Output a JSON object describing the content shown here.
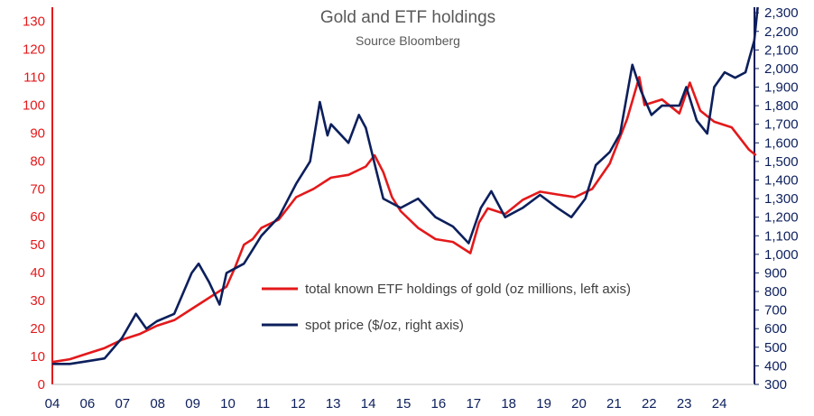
{
  "chart_data": {
    "type": "line",
    "title": "Gold and ETF holdings",
    "subtitle": "Source Bloomberg",
    "x_ticks": [
      "04",
      "06",
      "07",
      "08",
      "09",
      "10",
      "11",
      "12",
      "13",
      "14",
      "15",
      "16",
      "17",
      "18",
      "19",
      "20",
      "21",
      "22",
      "23",
      "24"
    ],
    "y_left_ticks": [
      "0",
      "10",
      "20",
      "30",
      "40",
      "50",
      "60",
      "70",
      "80",
      "90",
      "100",
      "110",
      "120",
      "130"
    ],
    "y_right_ticks": [
      "300",
      "400",
      "500",
      "600",
      "700",
      "800",
      "900",
      "1,000",
      "1,100",
      "1,200",
      "1,300",
      "1,400",
      "1,500",
      "1,600",
      "1,700",
      "1,800",
      "1,900",
      "2,000",
      "2,100",
      "2,200",
      "2,300"
    ],
    "ylim_left": [
      0,
      135
    ],
    "ylim_right": [
      300,
      2330
    ],
    "grid": false,
    "legend_position": "center",
    "colors": {
      "etf": "#e3191b",
      "spot": "#0c1f5c"
    },
    "series": [
      {
        "name": "total known ETF holdings of gold (oz millions, left axis)",
        "axis": "left",
        "x": [
          2004.0,
          2004.5,
          2005.0,
          2005.5,
          2006.0,
          2006.5,
          2007.0,
          2007.5,
          2008.0,
          2008.5,
          2009.0,
          2009.25,
          2009.5,
          2009.75,
          2010.0,
          2010.5,
          2011.0,
          2011.5,
          2012.0,
          2012.5,
          2013.0,
          2013.25,
          2013.5,
          2013.75,
          2014.0,
          2014.5,
          2015.0,
          2015.5,
          2016.0,
          2016.25,
          2016.5,
          2017.0,
          2017.5,
          2018.0,
          2018.5,
          2019.0,
          2019.5,
          2020.0,
          2020.5,
          2020.85,
          2021.0,
          2021.5,
          2022.0,
          2022.3,
          2022.6,
          2023.0,
          2023.5,
          2024.0,
          2024.2
        ],
        "values": [
          8,
          9,
          11,
          13,
          16,
          18,
          21,
          23,
          27,
          31,
          35,
          42,
          50,
          52,
          56,
          59,
          67,
          70,
          74,
          75,
          78,
          82,
          76,
          67,
          62,
          56,
          52,
          51,
          47,
          58,
          63,
          61,
          66,
          69,
          68,
          67,
          70,
          79,
          95,
          110,
          100,
          102,
          97,
          108,
          98,
          94,
          92,
          84,
          82
        ]
      },
      {
        "name": "spot price ($/oz, right axis)",
        "axis": "right",
        "x": [
          2004.0,
          2004.5,
          2005.0,
          2005.5,
          2006.0,
          2006.4,
          2006.7,
          2007.0,
          2007.5,
          2008.0,
          2008.2,
          2008.5,
          2008.8,
          2009.0,
          2009.5,
          2010.0,
          2010.5,
          2011.0,
          2011.4,
          2011.68,
          2011.9,
          2012.0,
          2012.5,
          2012.8,
          2013.0,
          2013.3,
          2013.5,
          2014.0,
          2014.5,
          2015.0,
          2015.5,
          2015.95,
          2016.3,
          2016.6,
          2017.0,
          2017.5,
          2018.0,
          2018.5,
          2018.9,
          2019.3,
          2019.6,
          2020.0,
          2020.3,
          2020.65,
          2020.9,
          2021.2,
          2021.5,
          2022.0,
          2022.2,
          2022.5,
          2022.8,
          2023.0,
          2023.3,
          2023.6,
          2023.9,
          2024.0,
          2024.15,
          2024.25
        ],
        "values": [
          410,
          410,
          425,
          440,
          550,
          680,
          600,
          640,
          680,
          900,
          950,
          850,
          730,
          900,
          950,
          1100,
          1200,
          1380,
          1500,
          1820,
          1640,
          1700,
          1600,
          1750,
          1680,
          1450,
          1300,
          1250,
          1300,
          1200,
          1150,
          1060,
          1250,
          1340,
          1200,
          1250,
          1320,
          1250,
          1200,
          1300,
          1480,
          1550,
          1650,
          2020,
          1880,
          1750,
          1800,
          1800,
          1900,
          1720,
          1650,
          1900,
          1980,
          1950,
          1980,
          2050,
          2150,
          2330
        ]
      }
    ]
  }
}
